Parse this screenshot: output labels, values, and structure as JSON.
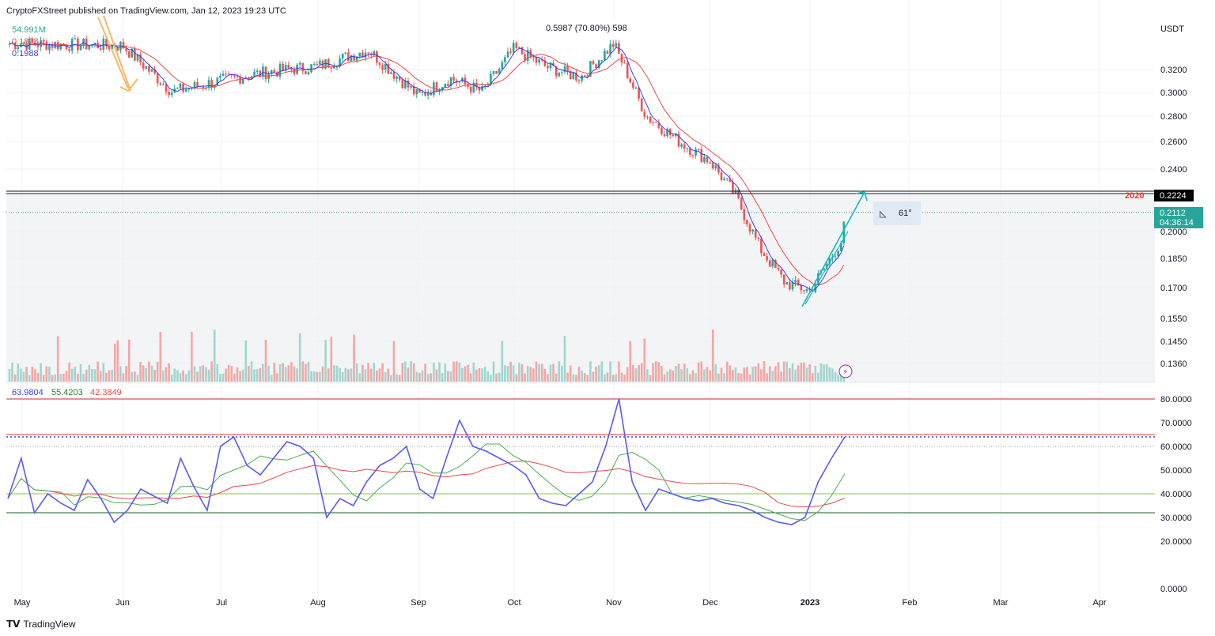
{
  "header": {
    "published": "CryptoFXStreet published on TradingView.com, Jan 12, 2023 19:23 UTC"
  },
  "legend_main": {
    "volume": "54.991M",
    "ma_red": "0.1828",
    "ma_blue": "0.1988"
  },
  "legend_rsi": {
    "rsi": "63.9804",
    "rsi_ma_green": "55.4203",
    "rsi_ma_red": "42.3849"
  },
  "measure_label": "0.5987 (70.80%) 598",
  "angle_label": "61°",
  "level_label": "2020",
  "level_price": "0.2224",
  "last_price": "0.2112",
  "countdown": "04:36:14",
  "currency": "USDT",
  "brand": "TradingView",
  "colors": {
    "up": "#26a69a",
    "down": "#ef5350",
    "ma_blue": "#3f3fe6",
    "ma_red": "#e84a4a",
    "rsi_line": "#5b5bf0",
    "rsi_green": "#4caf50",
    "annotation_cyan": "#16b8c4",
    "orange_arrow": "#f5b968"
  },
  "chart_data": [
    {
      "type": "candlestick",
      "title": "",
      "y_scale": "log",
      "price_ticks": [
        "0.3200",
        "0.3000",
        "0.2800",
        "0.2600",
        "0.2400",
        "0.2000",
        "0.1850",
        "0.1700",
        "0.1550",
        "0.1450",
        "0.1360"
      ],
      "x_ticks": [
        "May",
        "Jun",
        "Jul",
        "Aug",
        "Sep",
        "Oct",
        "Nov",
        "Dec",
        "2023",
        "Feb",
        "Mar",
        "Apr"
      ],
      "close_path": [
        [
          "May",
          0.345
        ],
        [
          "Jun",
          0.343
        ],
        [
          "Jun",
          0.3
        ],
        [
          "Jul",
          0.31
        ],
        [
          "Jul",
          0.318
        ],
        [
          "Aug",
          0.323
        ],
        [
          "Aug",
          0.339
        ],
        [
          "Sep",
          0.296
        ],
        [
          "Sep",
          0.312
        ],
        [
          "Sep",
          0.3
        ],
        [
          "Oct",
          0.34
        ],
        [
          "Oct",
          0.322
        ],
        [
          "Oct",
          0.313
        ],
        [
          "Nov",
          0.345
        ],
        [
          "Nov",
          0.28
        ],
        [
          "Nov",
          0.26
        ],
        [
          "Dec",
          0.245
        ],
        [
          "Dec",
          0.222
        ],
        [
          "Dec",
          0.19
        ],
        [
          "Dec",
          0.172
        ],
        [
          "2023",
          0.168
        ],
        [
          "2023",
          0.196
        ],
        [
          "2023",
          0.2112
        ]
      ],
      "horizontal_line": {
        "label": "2020",
        "value": 0.2224
      },
      "last_price": 0.2112,
      "series": [
        {
          "name": "MA blue",
          "last": 0.1988
        },
        {
          "name": "MA red",
          "last": 0.1828
        }
      ],
      "volume_last": "54.991M"
    },
    {
      "type": "line",
      "title": "",
      "ylim": [
        0,
        80
      ],
      "y_ticks": [
        "80.0000",
        "70.0000",
        "60.0000",
        "50.0000",
        "40.0000",
        "30.0000",
        "20.0000",
        "0.0000"
      ],
      "levels": [
        80,
        65,
        60,
        40,
        32
      ],
      "series": [
        {
          "name": "RSI",
          "last": 63.9804,
          "values": [
            38,
            55,
            32,
            40,
            36,
            33,
            46,
            38,
            28,
            33,
            42,
            39,
            36,
            55,
            43,
            33,
            60,
            64,
            52,
            48,
            55,
            62,
            60,
            55,
            30,
            38,
            35,
            45,
            52,
            55,
            60,
            42,
            38,
            55,
            71,
            60,
            58,
            55,
            52,
            48,
            38,
            36,
            35,
            40,
            45,
            60,
            80,
            45,
            33,
            42,
            40,
            38,
            37,
            38,
            36,
            35,
            33,
            30,
            28,
            27,
            30,
            45,
            55,
            64
          ]
        },
        {
          "name": "RSI MA green",
          "last": 55.4203
        },
        {
          "name": "RSI MA red",
          "last": 42.3849
        }
      ]
    }
  ]
}
